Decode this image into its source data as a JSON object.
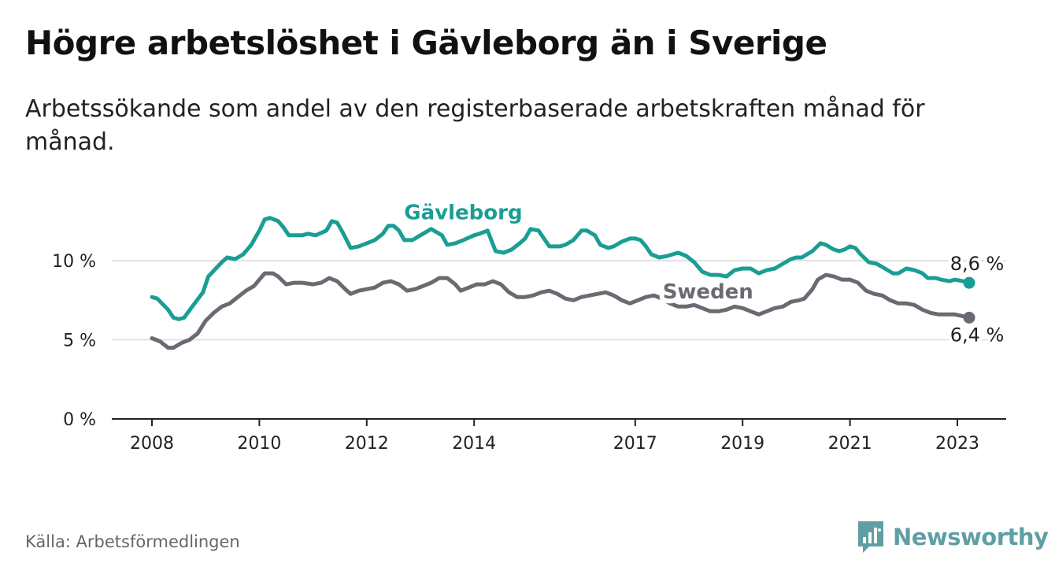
{
  "title": "Högre arbetslöshet i Gävleborg än i Sverige",
  "subtitle": "Arbetssökande som andel av den registerbaserade arbetskraften månad för månad.",
  "source": "Källa: Arbetsförmedlingen",
  "brand": {
    "name": "Newsworthy",
    "icon": "bar-chart-bubble-icon",
    "color": "#5f9fa3"
  },
  "chart_data": {
    "type": "line",
    "ylim": [
      0,
      13.5
    ],
    "xlim": [
      2007.9,
      2023.9
    ],
    "y_ticks": [
      {
        "value": 0,
        "label": "0 %"
      },
      {
        "value": 5,
        "label": "5 %"
      },
      {
        "value": 10,
        "label": "10 %"
      }
    ],
    "x_ticks": [
      {
        "value": 2008,
        "label": "2008"
      },
      {
        "value": 2010,
        "label": "2010"
      },
      {
        "value": 2012,
        "label": "2012"
      },
      {
        "value": 2014,
        "label": "2014"
      },
      {
        "value": 2017,
        "label": "2017"
      },
      {
        "value": 2019,
        "label": "2019"
      },
      {
        "value": 2021,
        "label": "2021"
      },
      {
        "value": 2023,
        "label": "2023"
      }
    ],
    "grid": true,
    "legend": "inline",
    "series": [
      {
        "name": "Gävleborg",
        "color": "#1a9e94",
        "end_label": "8,6 %",
        "points": [
          [
            2008.0,
            7.7
          ],
          [
            2008.1,
            7.6
          ],
          [
            2008.3,
            6.9
          ],
          [
            2008.4,
            6.4
          ],
          [
            2008.5,
            6.3
          ],
          [
            2008.6,
            6.4
          ],
          [
            2008.75,
            7.1
          ],
          [
            2008.95,
            8.0
          ],
          [
            2009.05,
            9.0
          ],
          [
            2009.3,
            9.9
          ],
          [
            2009.4,
            10.2
          ],
          [
            2009.55,
            10.1
          ],
          [
            2009.7,
            10.4
          ],
          [
            2009.85,
            11.0
          ],
          [
            2010.0,
            11.9
          ],
          [
            2010.1,
            12.6
          ],
          [
            2010.2,
            12.7
          ],
          [
            2010.35,
            12.5
          ],
          [
            2010.45,
            12.1
          ],
          [
            2010.55,
            11.6
          ],
          [
            2010.8,
            11.6
          ],
          [
            2010.9,
            11.7
          ],
          [
            2011.05,
            11.6
          ],
          [
            2011.25,
            11.9
          ],
          [
            2011.35,
            12.5
          ],
          [
            2011.45,
            12.4
          ],
          [
            2011.55,
            11.8
          ],
          [
            2011.7,
            10.8
          ],
          [
            2011.85,
            10.9
          ],
          [
            2012.0,
            11.1
          ],
          [
            2012.15,
            11.3
          ],
          [
            2012.3,
            11.7
          ],
          [
            2012.4,
            12.2
          ],
          [
            2012.5,
            12.2
          ],
          [
            2012.6,
            11.9
          ],
          [
            2012.7,
            11.3
          ],
          [
            2012.85,
            11.3
          ],
          [
            2013.0,
            11.6
          ],
          [
            2013.1,
            11.8
          ],
          [
            2013.2,
            12.0
          ],
          [
            2013.3,
            11.8
          ],
          [
            2013.4,
            11.6
          ],
          [
            2013.5,
            11.0
          ],
          [
            2013.65,
            11.1
          ],
          [
            2013.8,
            11.3
          ],
          [
            2014.0,
            11.6
          ],
          [
            2014.1,
            11.7
          ],
          [
            2014.25,
            11.9
          ],
          [
            2014.4,
            10.6
          ],
          [
            2014.55,
            10.5
          ],
          [
            2014.7,
            10.7
          ],
          [
            2014.85,
            11.1
          ],
          [
            2014.95,
            11.4
          ],
          [
            2015.05,
            12.0
          ],
          [
            2015.2,
            11.9
          ],
          [
            2015.3,
            11.4
          ],
          [
            2015.4,
            10.9
          ],
          [
            2015.6,
            10.9
          ],
          [
            2015.7,
            11.0
          ],
          [
            2015.85,
            11.3
          ],
          [
            2016.0,
            11.9
          ],
          [
            2016.1,
            11.9
          ],
          [
            2016.25,
            11.6
          ],
          [
            2016.35,
            11.0
          ],
          [
            2016.5,
            10.8
          ],
          [
            2016.6,
            10.9
          ],
          [
            2016.75,
            11.2
          ],
          [
            2016.9,
            11.4
          ],
          [
            2017.0,
            11.4
          ],
          [
            2017.1,
            11.3
          ],
          [
            2017.2,
            10.9
          ],
          [
            2017.3,
            10.4
          ],
          [
            2017.45,
            10.2
          ],
          [
            2017.6,
            10.3
          ],
          [
            2017.8,
            10.5
          ],
          [
            2017.95,
            10.3
          ],
          [
            2018.1,
            9.9
          ],
          [
            2018.25,
            9.3
          ],
          [
            2018.4,
            9.1
          ],
          [
            2018.55,
            9.1
          ],
          [
            2018.7,
            9.0
          ],
          [
            2018.85,
            9.4
          ],
          [
            2019.0,
            9.5
          ],
          [
            2019.15,
            9.5
          ],
          [
            2019.3,
            9.2
          ],
          [
            2019.45,
            9.4
          ],
          [
            2019.6,
            9.5
          ],
          [
            2019.75,
            9.8
          ],
          [
            2019.9,
            10.1
          ],
          [
            2020.0,
            10.2
          ],
          [
            2020.1,
            10.2
          ],
          [
            2020.3,
            10.6
          ],
          [
            2020.45,
            11.1
          ],
          [
            2020.55,
            11.0
          ],
          [
            2020.7,
            10.7
          ],
          [
            2020.8,
            10.6
          ],
          [
            2020.9,
            10.7
          ],
          [
            2021.0,
            10.9
          ],
          [
            2021.1,
            10.8
          ],
          [
            2021.2,
            10.4
          ],
          [
            2021.35,
            9.9
          ],
          [
            2021.5,
            9.8
          ],
          [
            2021.65,
            9.5
          ],
          [
            2021.8,
            9.2
          ],
          [
            2021.9,
            9.2
          ],
          [
            2022.05,
            9.5
          ],
          [
            2022.2,
            9.4
          ],
          [
            2022.35,
            9.2
          ],
          [
            2022.45,
            8.9
          ],
          [
            2022.6,
            8.9
          ],
          [
            2022.7,
            8.8
          ],
          [
            2022.85,
            8.7
          ],
          [
            2022.95,
            8.8
          ],
          [
            2023.1,
            8.7
          ],
          [
            2023.22,
            8.6
          ]
        ]
      },
      {
        "name": "Sweden",
        "color": "#6b6a72",
        "end_label": "6,4 %",
        "points": [
          [
            2008.0,
            5.1
          ],
          [
            2008.15,
            4.9
          ],
          [
            2008.3,
            4.5
          ],
          [
            2008.4,
            4.5
          ],
          [
            2008.55,
            4.8
          ],
          [
            2008.7,
            5.0
          ],
          [
            2008.85,
            5.4
          ],
          [
            2009.0,
            6.2
          ],
          [
            2009.15,
            6.7
          ],
          [
            2009.3,
            7.1
          ],
          [
            2009.45,
            7.3
          ],
          [
            2009.6,
            7.7
          ],
          [
            2009.75,
            8.1
          ],
          [
            2009.9,
            8.4
          ],
          [
            2010.0,
            8.8
          ],
          [
            2010.1,
            9.2
          ],
          [
            2010.25,
            9.2
          ],
          [
            2010.35,
            9.0
          ],
          [
            2010.5,
            8.5
          ],
          [
            2010.65,
            8.6
          ],
          [
            2010.8,
            8.6
          ],
          [
            2011.0,
            8.5
          ],
          [
            2011.15,
            8.6
          ],
          [
            2011.3,
            8.9
          ],
          [
            2011.45,
            8.7
          ],
          [
            2011.6,
            8.2
          ],
          [
            2011.7,
            7.9
          ],
          [
            2011.85,
            8.1
          ],
          [
            2012.0,
            8.2
          ],
          [
            2012.15,
            8.3
          ],
          [
            2012.3,
            8.6
          ],
          [
            2012.45,
            8.7
          ],
          [
            2012.6,
            8.5
          ],
          [
            2012.75,
            8.1
          ],
          [
            2012.9,
            8.2
          ],
          [
            2013.05,
            8.4
          ],
          [
            2013.2,
            8.6
          ],
          [
            2013.35,
            8.9
          ],
          [
            2013.5,
            8.9
          ],
          [
            2013.65,
            8.5
          ],
          [
            2013.75,
            8.1
          ],
          [
            2013.9,
            8.3
          ],
          [
            2014.05,
            8.5
          ],
          [
            2014.2,
            8.5
          ],
          [
            2014.35,
            8.7
          ],
          [
            2014.5,
            8.5
          ],
          [
            2014.65,
            8.0
          ],
          [
            2014.8,
            7.7
          ],
          [
            2014.95,
            7.7
          ],
          [
            2015.1,
            7.8
          ],
          [
            2015.25,
            8.0
          ],
          [
            2015.4,
            8.1
          ],
          [
            2015.55,
            7.9
          ],
          [
            2015.7,
            7.6
          ],
          [
            2015.85,
            7.5
          ],
          [
            2016.0,
            7.7
          ],
          [
            2016.15,
            7.8
          ],
          [
            2016.3,
            7.9
          ],
          [
            2016.45,
            8.0
          ],
          [
            2016.6,
            7.8
          ],
          [
            2016.75,
            7.5
          ],
          [
            2016.9,
            7.3
          ],
          [
            2017.05,
            7.5
          ],
          [
            2017.2,
            7.7
          ],
          [
            2017.35,
            7.8
          ],
          [
            2017.5,
            7.6
          ],
          [
            2017.65,
            7.3
          ],
          [
            2017.8,
            7.1
          ],
          [
            2017.95,
            7.1
          ],
          [
            2018.1,
            7.2
          ],
          [
            2018.25,
            7.0
          ],
          [
            2018.4,
            6.8
          ],
          [
            2018.55,
            6.8
          ],
          [
            2018.7,
            6.9
          ],
          [
            2018.85,
            7.1
          ],
          [
            2019.0,
            7.0
          ],
          [
            2019.15,
            6.8
          ],
          [
            2019.3,
            6.6
          ],
          [
            2019.45,
            6.8
          ],
          [
            2019.6,
            7.0
          ],
          [
            2019.75,
            7.1
          ],
          [
            2019.9,
            7.4
          ],
          [
            2020.05,
            7.5
          ],
          [
            2020.15,
            7.6
          ],
          [
            2020.3,
            8.2
          ],
          [
            2020.4,
            8.8
          ],
          [
            2020.55,
            9.1
          ],
          [
            2020.7,
            9.0
          ],
          [
            2020.85,
            8.8
          ],
          [
            2021.0,
            8.8
          ],
          [
            2021.15,
            8.6
          ],
          [
            2021.3,
            8.1
          ],
          [
            2021.45,
            7.9
          ],
          [
            2021.6,
            7.8
          ],
          [
            2021.75,
            7.5
          ],
          [
            2021.9,
            7.3
          ],
          [
            2022.05,
            7.3
          ],
          [
            2022.2,
            7.2
          ],
          [
            2022.35,
            6.9
          ],
          [
            2022.5,
            6.7
          ],
          [
            2022.65,
            6.6
          ],
          [
            2022.8,
            6.6
          ],
          [
            2022.95,
            6.6
          ],
          [
            2023.1,
            6.5
          ],
          [
            2023.22,
            6.4
          ]
        ]
      }
    ]
  }
}
